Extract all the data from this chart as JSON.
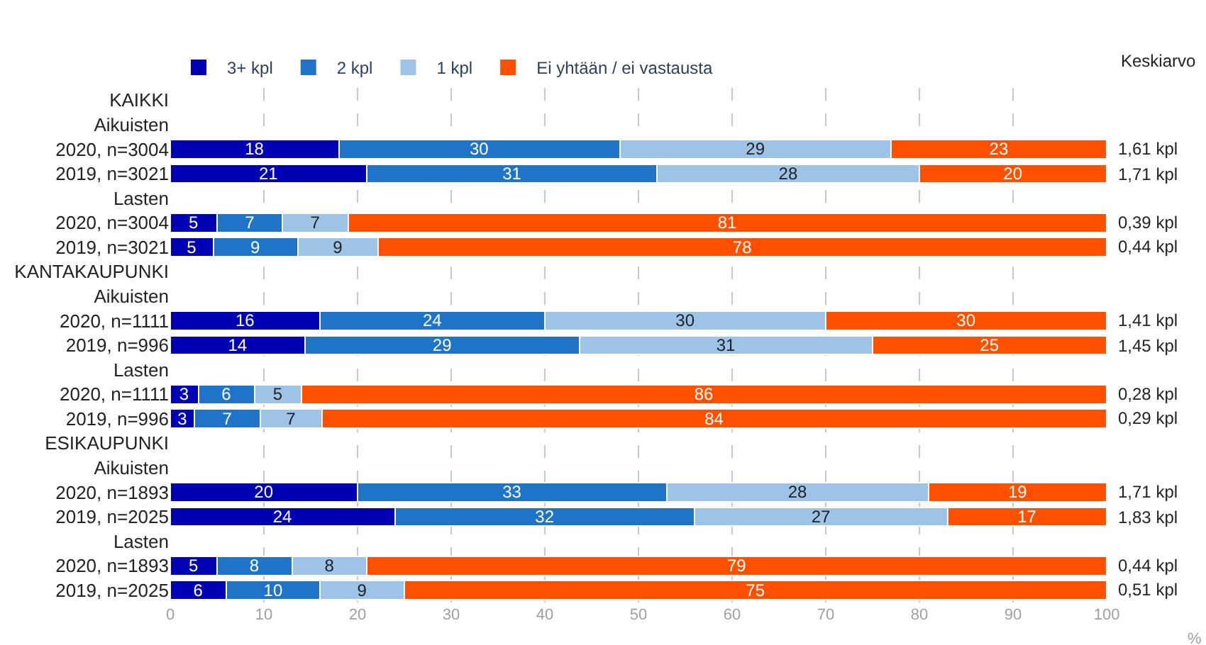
{
  "chart_data": {
    "type": "bar",
    "orientation": "horizontal",
    "stacked": true,
    "categories": [
      "KAIKKI",
      "Aikuisten",
      "2020, n=3004",
      "2019, n=3021",
      "Lasten",
      "2020, n=3004",
      "2019, n=3021",
      "KANTAKAUPUNKI",
      "Aikuisten",
      "2020, n=1111",
      "2019, n=996",
      "Lasten",
      "2020, n=1111",
      "2019, n=996",
      "ESIKAUPUNKI",
      "Aikuisten",
      "2020, n=1893",
      "2019, n=2025",
      "Lasten",
      "2020, n=1893",
      "2019, n=2025"
    ],
    "series": [
      {
        "name": "3+ kpl",
        "color": "#0000b4",
        "values": [
          null,
          null,
          18,
          21,
          null,
          5,
          4.6,
          null,
          null,
          16,
          14.4,
          null,
          3,
          2.6,
          null,
          null,
          20,
          24,
          null,
          5,
          6
        ],
        "value_labels": [
          null,
          null,
          "18",
          "21",
          null,
          "5",
          "5",
          null,
          null,
          "16",
          "14",
          null,
          "3",
          "3",
          null,
          null,
          "20",
          "24",
          null,
          "5",
          "6"
        ]
      },
      {
        "name": "2 kpl",
        "color": "#1f74c8",
        "values": [
          null,
          null,
          30,
          31,
          null,
          7,
          9,
          null,
          null,
          24,
          29.3,
          null,
          6,
          7,
          null,
          null,
          33,
          32,
          null,
          8,
          10
        ],
        "value_labels": [
          null,
          null,
          "30",
          "31",
          null,
          "7",
          "9",
          null,
          null,
          "24",
          "29",
          null,
          "6",
          "7",
          null,
          null,
          "33",
          "32",
          null,
          "8",
          "10"
        ]
      },
      {
        "name": "1 kpl",
        "color": "#9dc3e6",
        "values": [
          null,
          null,
          29,
          28,
          null,
          7,
          8.6,
          null,
          null,
          30,
          31.3,
          null,
          5,
          6.6,
          null,
          null,
          28,
          27,
          null,
          8,
          9
        ],
        "value_labels": [
          null,
          null,
          "29",
          "28",
          null,
          "7",
          "9",
          null,
          null,
          "30",
          "31",
          null,
          "5",
          "7",
          null,
          null,
          "28",
          "27",
          null,
          "8",
          "9"
        ]
      },
      {
        "name": "Ei yhtään / ei vastausta",
        "color": "#ff5000",
        "values": [
          null,
          null,
          23,
          20,
          null,
          81,
          77.8,
          null,
          null,
          30,
          25,
          null,
          86,
          83.8,
          null,
          null,
          19,
          17,
          null,
          79,
          75
        ],
        "value_labels": [
          null,
          null,
          "23",
          "20",
          null,
          "81",
          "78",
          null,
          null,
          "30",
          "25",
          null,
          "86",
          "84",
          null,
          null,
          "19",
          "17",
          null,
          "79",
          "75"
        ]
      }
    ],
    "xlabel": "%",
    "xlim": [
      0,
      100
    ],
    "xticks": [
      0,
      10,
      20,
      30,
      40,
      50,
      60,
      70,
      80,
      90,
      100
    ],
    "grid": "x",
    "legend": "top",
    "annotations": [
      "Keskiarvo",
      "1,61 kpl",
      "1,71 kpl",
      "0,39 kpl",
      "0,44 kpl",
      "1,41 kpl",
      "1,45 kpl",
      "0,28 kpl",
      "0,29 kpl",
      "1,71 kpl",
      "1,83 kpl",
      "0,44 kpl",
      "0,51 kpl"
    ]
  }
}
